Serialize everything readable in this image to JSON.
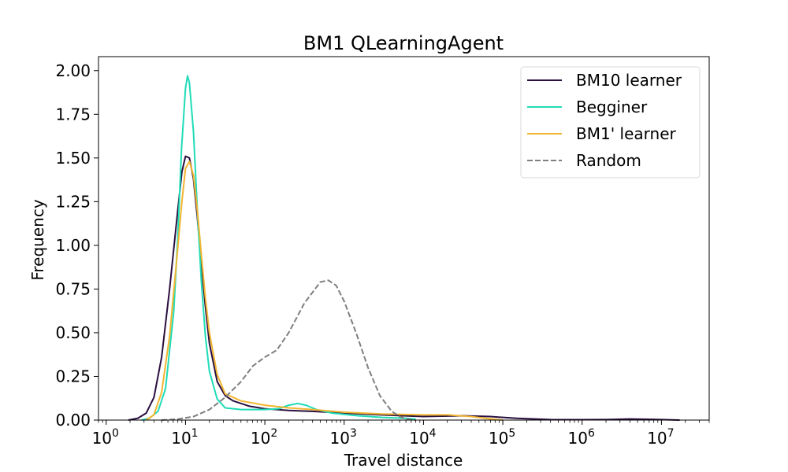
{
  "chart_data": {
    "type": "line",
    "title": "BM1 QLearningAgent",
    "xlabel": "Travel distance",
    "ylabel": "Frequency",
    "xscale": "log",
    "xlim": [
      0.8,
      40000000
    ],
    "ylim": [
      0,
      2.08
    ],
    "x_ticks": [
      {
        "value": 1,
        "base": "10",
        "exp": "0"
      },
      {
        "value": 10,
        "base": "10",
        "exp": "1"
      },
      {
        "value": 100,
        "base": "10",
        "exp": "2"
      },
      {
        "value": 1000,
        "base": "10",
        "exp": "3"
      },
      {
        "value": 10000,
        "base": "10",
        "exp": "4"
      },
      {
        "value": 100000,
        "base": "10",
        "exp": "5"
      },
      {
        "value": 1000000,
        "base": "10",
        "exp": "6"
      },
      {
        "value": 10000000,
        "base": "10",
        "exp": "7"
      }
    ],
    "y_ticks": [
      {
        "value": 0.0,
        "label": "0.00"
      },
      {
        "value": 0.25,
        "label": "0.25"
      },
      {
        "value": 0.5,
        "label": "0.50"
      },
      {
        "value": 0.75,
        "label": "0.75"
      },
      {
        "value": 1.0,
        "label": "1.00"
      },
      {
        "value": 1.25,
        "label": "1.25"
      },
      {
        "value": 1.5,
        "label": "1.50"
      },
      {
        "value": 1.75,
        "label": "1.75"
      },
      {
        "value": 2.0,
        "label": "2.00"
      }
    ],
    "grid": false,
    "legend_position": "top-right",
    "series": [
      {
        "name": "BM10 learner",
        "color": "#2a0f3f",
        "dash": "solid",
        "points": [
          [
            1.9,
            0.0
          ],
          [
            2.5,
            0.01
          ],
          [
            3.2,
            0.04
          ],
          [
            4.0,
            0.13
          ],
          [
            5.0,
            0.36
          ],
          [
            6.3,
            0.75
          ],
          [
            7.9,
            1.18
          ],
          [
            9.0,
            1.42
          ],
          [
            10.0,
            1.51
          ],
          [
            11.2,
            1.5
          ],
          [
            12.6,
            1.38
          ],
          [
            14.1,
            1.16
          ],
          [
            15.8,
            0.9
          ],
          [
            17.8,
            0.65
          ],
          [
            20.0,
            0.44
          ],
          [
            25.1,
            0.22
          ],
          [
            31.6,
            0.14
          ],
          [
            39.8,
            0.11
          ],
          [
            63.1,
            0.08
          ],
          [
            100,
            0.065
          ],
          [
            200,
            0.055
          ],
          [
            400,
            0.05
          ],
          [
            1000,
            0.04
          ],
          [
            3000,
            0.03
          ],
          [
            10000,
            0.02
          ],
          [
            30000,
            0.025
          ],
          [
            70000,
            0.02
          ],
          [
            150000,
            0.01
          ],
          [
            400000,
            0.003
          ],
          [
            1000000,
            0.002
          ],
          [
            2000000,
            0.003
          ],
          [
            4000000,
            0.006
          ],
          [
            8000000,
            0.004
          ],
          [
            17000000,
            0.0
          ]
        ]
      },
      {
        "name": "Begginer",
        "color": "#1fdcb7",
        "dash": "solid",
        "points": [
          [
            2.8,
            0.0
          ],
          [
            3.5,
            0.01
          ],
          [
            4.5,
            0.05
          ],
          [
            5.6,
            0.18
          ],
          [
            7.1,
            0.62
          ],
          [
            8.0,
            1.05
          ],
          [
            8.9,
            1.55
          ],
          [
            10.0,
            1.9
          ],
          [
            10.6,
            1.97
          ],
          [
            11.2,
            1.93
          ],
          [
            12.6,
            1.65
          ],
          [
            14.1,
            1.2
          ],
          [
            15.8,
            0.8
          ],
          [
            17.8,
            0.48
          ],
          [
            20.0,
            0.28
          ],
          [
            25.1,
            0.12
          ],
          [
            31.6,
            0.07
          ],
          [
            50,
            0.06
          ],
          [
            100,
            0.06
          ],
          [
            150,
            0.065
          ],
          [
            200,
            0.085
          ],
          [
            260,
            0.095
          ],
          [
            330,
            0.085
          ],
          [
            450,
            0.06
          ],
          [
            700,
            0.04
          ],
          [
            1500,
            0.025
          ],
          [
            3000,
            0.015
          ],
          [
            6000,
            0.01
          ],
          [
            8000,
            0.005
          ]
        ]
      },
      {
        "name": "BM1' learner",
        "color": "#f2b531",
        "dash": "solid",
        "points": [
          [
            3.2,
            0.0
          ],
          [
            4.0,
            0.03
          ],
          [
            5.0,
            0.16
          ],
          [
            6.3,
            0.48
          ],
          [
            7.9,
            0.96
          ],
          [
            9.0,
            1.25
          ],
          [
            10.0,
            1.44
          ],
          [
            11.2,
            1.48
          ],
          [
            12.6,
            1.4
          ],
          [
            14.1,
            1.2
          ],
          [
            15.8,
            0.95
          ],
          [
            17.8,
            0.7
          ],
          [
            20.0,
            0.5
          ],
          [
            25.1,
            0.26
          ],
          [
            31.6,
            0.15
          ],
          [
            50,
            0.11
          ],
          [
            100,
            0.085
          ],
          [
            200,
            0.07
          ],
          [
            400,
            0.06
          ],
          [
            1000,
            0.045
          ],
          [
            3000,
            0.035
          ],
          [
            10000,
            0.03
          ],
          [
            20000,
            0.03
          ],
          [
            40000,
            0.02
          ],
          [
            60000,
            0.01
          ],
          [
            100000,
            0.0
          ]
        ]
      },
      {
        "name": "Random",
        "color": "#7f7f7f",
        "dash": "dashed",
        "points": [
          [
            5.0,
            0.0
          ],
          [
            7.9,
            0.005
          ],
          [
            12.6,
            0.02
          ],
          [
            20.0,
            0.06
          ],
          [
            31.6,
            0.13
          ],
          [
            50.1,
            0.22
          ],
          [
            70.8,
            0.31
          ],
          [
            100,
            0.36
          ],
          [
            141,
            0.4
          ],
          [
            200,
            0.5
          ],
          [
            316,
            0.67
          ],
          [
            501,
            0.79
          ],
          [
            631,
            0.8
          ],
          [
            794,
            0.77
          ],
          [
            1000,
            0.68
          ],
          [
            1413,
            0.5
          ],
          [
            2000,
            0.3
          ],
          [
            2818,
            0.14
          ],
          [
            3981,
            0.05
          ],
          [
            5012,
            0.02
          ],
          [
            6310,
            0.005
          ],
          [
            7943,
            0.0
          ]
        ]
      }
    ]
  }
}
